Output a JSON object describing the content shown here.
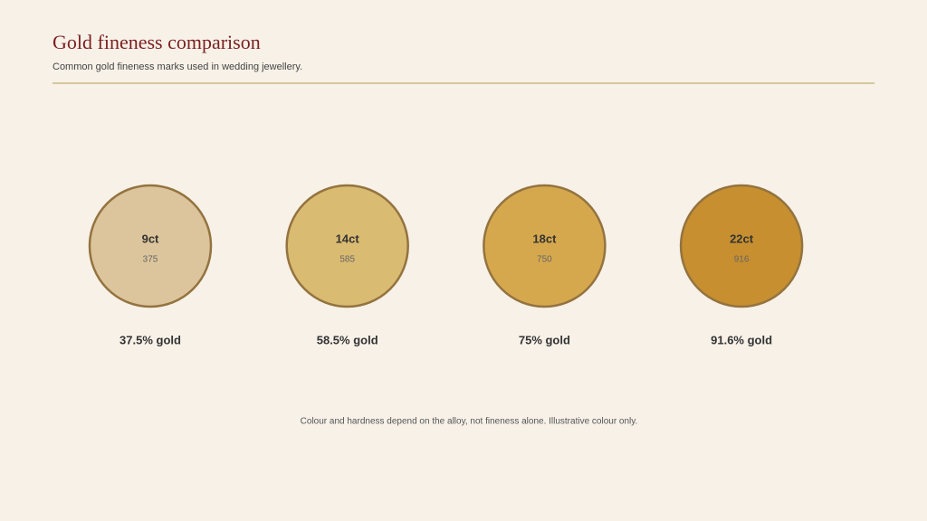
{
  "header": {
    "title": "Gold fineness comparison",
    "subtitle": "Common gold fineness marks used in wedding jewellery."
  },
  "items": [
    {
      "karat": "9ct",
      "fineness": "375",
      "label": "37.5% gold",
      "color": "#dcc59c"
    },
    {
      "karat": "14ct",
      "fineness": "585",
      "label": "58.5% gold",
      "color": "#d9bb72"
    },
    {
      "karat": "18ct",
      "fineness": "750",
      "label": "75% gold",
      "color": "#d6a84e"
    },
    {
      "karat": "22ct",
      "fineness": "916",
      "label": "91.6% gold",
      "color": "#c78f2f"
    }
  ],
  "footnote": "Colour and hardness depend on the alloy, not fineness alone. Illustrative colour only."
}
